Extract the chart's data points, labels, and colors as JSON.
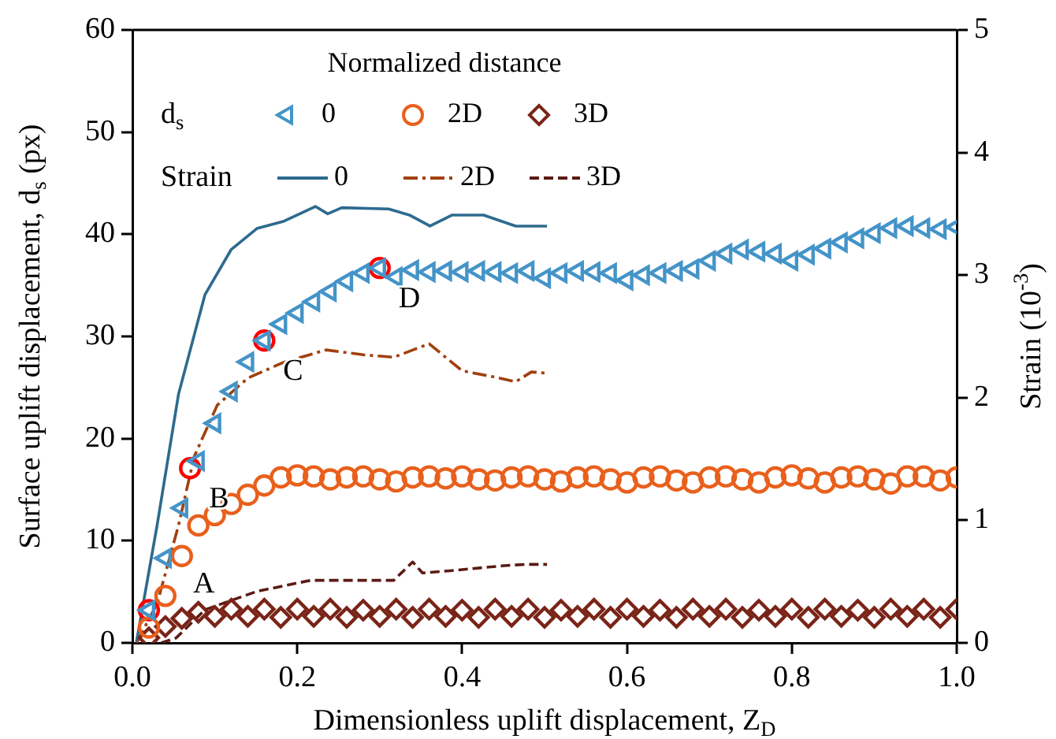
{
  "chart_data": {
    "type": "scatter",
    "xlabel": "Dimensionless uplift displacement, Z$_{D}$",
    "ylabel": "Surface uplift displacement, d$_{s}$ (px)",
    "y2label": "Strain (10$^{-3}$)",
    "legend_title": "Normalized distance",
    "legend": "top left",
    "grid": false,
    "xlim": [
      0,
      1
    ],
    "xticks": [
      {
        "value": 0,
        "label": "0.0"
      },
      0.2,
      0.4,
      0.6,
      0.8,
      {
        "value": 1,
        "label": "1.0"
      }
    ],
    "ylim": [
      0,
      60
    ],
    "yticks": [
      0,
      10,
      20,
      30,
      40,
      50,
      60
    ],
    "y2lim": [
      0,
      5
    ],
    "y2ticks": [
      0,
      1,
      2,
      3,
      4,
      5
    ],
    "annotations": [
      "d$_{s}$",
      "Strain",
      {
        "text": "A",
        "x": 0.02,
        "y": 3.2
      },
      {
        "text": "B",
        "x": 0.07,
        "y": 17.1
      },
      {
        "text": "C",
        "x": 0.16,
        "y": 29.6
      },
      {
        "text": "D",
        "x": 0.3,
        "y": 36.7
      }
    ],
    "series": [
      {
        "name": "0",
        "type": "scatter",
        "marker": "triangle",
        "color": "#4494c8",
        "x": [
          0.02,
          0.04,
          0.06,
          0.08,
          0.1,
          0.12,
          0.14,
          0.16,
          0.18,
          0.2,
          0.22,
          0.24,
          0.26,
          0.28,
          0.3,
          0.32,
          0.34,
          0.36,
          0.38,
          0.4,
          0.42,
          0.44,
          0.46,
          0.48,
          0.5,
          0.52,
          0.54,
          0.56,
          0.58,
          0.6,
          0.62,
          0.64,
          0.66,
          0.68,
          0.7,
          0.72,
          0.74,
          0.76,
          0.78,
          0.8,
          0.82,
          0.84,
          0.86,
          0.88,
          0.9,
          0.92,
          0.94,
          0.96,
          0.98,
          1.0
        ],
        "values": [
          3.2,
          8.3,
          13.2,
          17.8,
          21.5,
          24.6,
          27.5,
          29.6,
          31.2,
          32.3,
          33.4,
          34.4,
          35.4,
          36.2,
          36.7,
          35.8,
          36.5,
          36.3,
          36.4,
          36.3,
          36.4,
          36.3,
          36.2,
          36.4,
          35.7,
          36.2,
          36.4,
          36.3,
          36.2,
          35.5,
          36.0,
          36.2,
          36.4,
          36.6,
          37.4,
          38.1,
          38.5,
          38.3,
          38.1,
          37.4,
          38.0,
          38.6,
          39.2,
          39.6,
          40.1,
          40.6,
          40.8,
          40.6,
          40.5,
          40.7
        ]
      },
      {
        "name": "2D",
        "type": "scatter",
        "marker": "circle",
        "color": "#e8601c",
        "x": [
          0.02,
          0.04,
          0.06,
          0.08,
          0.1,
          0.12,
          0.14,
          0.16,
          0.18,
          0.2,
          0.22,
          0.24,
          0.26,
          0.28,
          0.3,
          0.32,
          0.34,
          0.36,
          0.38,
          0.4,
          0.42,
          0.44,
          0.46,
          0.48,
          0.5,
          0.52,
          0.54,
          0.56,
          0.58,
          0.6,
          0.62,
          0.64,
          0.66,
          0.68,
          0.7,
          0.72,
          0.74,
          0.76,
          0.78,
          0.8,
          0.82,
          0.84,
          0.86,
          0.88,
          0.9,
          0.92,
          0.94,
          0.96,
          0.98,
          1.0
        ],
        "values": [
          1.5,
          4.6,
          8.5,
          11.5,
          12.5,
          13.6,
          14.5,
          15.4,
          16.2,
          16.4,
          16.3,
          16.0,
          16.2,
          16.3,
          16.0,
          15.8,
          16.2,
          16.3,
          16.1,
          16.3,
          16.0,
          15.9,
          16.2,
          16.3,
          16.0,
          15.8,
          16.2,
          16.3,
          16.0,
          15.7,
          16.2,
          16.3,
          15.9,
          15.7,
          16.2,
          16.3,
          16.0,
          15.7,
          16.2,
          16.4,
          16.1,
          15.7,
          16.2,
          16.3,
          16.0,
          15.6,
          16.3,
          16.3,
          15.9,
          16.2
        ]
      },
      {
        "name": "3D",
        "type": "scatter",
        "marker": "diamond",
        "color": "#7a2418",
        "x": [
          0.02,
          0.04,
          0.06,
          0.08,
          0.1,
          0.12,
          0.14,
          0.16,
          0.18,
          0.2,
          0.22,
          0.24,
          0.26,
          0.28,
          0.3,
          0.32,
          0.34,
          0.36,
          0.38,
          0.4,
          0.42,
          0.44,
          0.46,
          0.48,
          0.5,
          0.52,
          0.54,
          0.56,
          0.58,
          0.6,
          0.62,
          0.64,
          0.66,
          0.68,
          0.7,
          0.72,
          0.74,
          0.76,
          0.78,
          0.8,
          0.82,
          0.84,
          0.86,
          0.88,
          0.9,
          0.92,
          0.94,
          0.96,
          0.98,
          1.0
        ],
        "values": [
          0.5,
          1.6,
          2.4,
          3.0,
          2.6,
          3.3,
          2.6,
          3.3,
          2.5,
          3.3,
          2.6,
          3.3,
          2.5,
          3.2,
          2.6,
          3.3,
          2.5,
          3.3,
          2.6,
          3.2,
          2.5,
          3.3,
          2.6,
          3.3,
          2.5,
          3.2,
          2.6,
          3.3,
          2.5,
          3.3,
          2.6,
          3.2,
          2.5,
          3.3,
          2.6,
          3.3,
          2.5,
          3.2,
          2.6,
          3.3,
          2.5,
          3.3,
          2.6,
          3.2,
          2.5,
          3.3,
          2.6,
          3.3,
          2.5,
          3.3
        ]
      },
      {
        "type": "scatter",
        "marker": "circle",
        "color": "#ff0000",
        "x": [
          0.02,
          0.07,
          0.16,
          0.3
        ],
        "values": [
          3.2,
          17.1,
          29.6,
          36.7
        ]
      },
      {
        "name": "0",
        "type": "line",
        "axis": "y2",
        "line_style": "solid",
        "color": "#2e6a8e",
        "x": [
          0.005,
          0.03,
          0.056,
          0.088,
          0.12,
          0.151,
          0.184,
          0.222,
          0.237,
          0.254,
          0.311,
          0.336,
          0.361,
          0.388,
          0.426,
          0.465,
          0.503
        ],
        "values": [
          0.01,
          0.96,
          2.03,
          2.84,
          3.21,
          3.38,
          3.44,
          3.56,
          3.5,
          3.55,
          3.54,
          3.49,
          3.4,
          3.49,
          3.49,
          3.4,
          3.4
        ]
      },
      {
        "name": "2D",
        "type": "line",
        "axis": "y2",
        "line_style": "dashdot",
        "color": "#a0400f",
        "x": [
          0.005,
          0.03,
          0.056,
          0.075,
          0.103,
          0.14,
          0.184,
          0.235,
          0.28,
          0.317,
          0.36,
          0.4,
          0.438,
          0.465,
          0.484,
          0.503
        ],
        "values": [
          0.0,
          0.32,
          0.96,
          1.52,
          1.94,
          2.16,
          2.29,
          2.39,
          2.35,
          2.33,
          2.44,
          2.22,
          2.17,
          2.13,
          2.21,
          2.2
        ]
      },
      {
        "name": "3D",
        "type": "line",
        "axis": "y2",
        "line_style": "dashed",
        "color": "#5c1a14",
        "x": [
          0.035,
          0.053,
          0.088,
          0.151,
          0.216,
          0.273,
          0.317,
          0.34,
          0.352,
          0.388,
          0.451,
          0.476,
          0.503
        ],
        "values": [
          0.0,
          0.04,
          0.27,
          0.42,
          0.51,
          0.51,
          0.51,
          0.66,
          0.57,
          0.59,
          0.63,
          0.64,
          0.64
        ]
      }
    ]
  }
}
